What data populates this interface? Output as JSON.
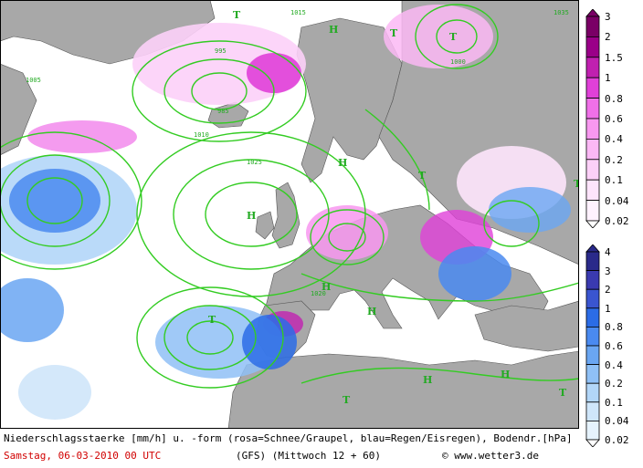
{
  "caption": {
    "line1": "Niederschlagsstaerke [mm/h] u. -form (rosa=Schnee/Graupel, blau=Regen/Eisregen), Bodendr.[hPa]",
    "date": "Samstag, 06-03-2010  00 UTC",
    "model": "(GFS)  (Mittwoch 12 + 60)",
    "copyright": "© www.wetter3.de"
  },
  "legend_snow": {
    "title": "Schnee/Graupel",
    "levels": [
      "3",
      "2",
      "1.5",
      "1",
      "0.8",
      "0.6",
      "0.4",
      "0.2",
      "0.1",
      "0.04",
      "0.02"
    ],
    "colors": [
      "#7a0066",
      "#9a0088",
      "#c020b0",
      "#e040d8",
      "#f070e8",
      "#f898f0",
      "#fbb8f5",
      "#fcd0f8",
      "#fde4fb",
      "#fff2fe",
      "#ffffff"
    ]
  },
  "legend_rain": {
    "title": "Regen/Eisregen",
    "levels": [
      "4",
      "3",
      "2",
      "1",
      "0.8",
      "0.6",
      "0.4",
      "0.2",
      "0.1",
      "0.04",
      "0.02"
    ],
    "colors": [
      "#2a2a8a",
      "#3a3ab0",
      "#3a55d0",
      "#2b6ce6",
      "#4a8af0",
      "#6aa6f2",
      "#8fc0f6",
      "#b2d6f8",
      "#cfe6fa",
      "#e6f3fd",
      "#ffffff"
    ]
  },
  "isobar_labels": [
    "1015",
    "1005",
    "995",
    "985",
    "1025",
    "1035",
    "1000",
    "1010",
    "1020"
  ],
  "pressure_centers": [
    "H",
    "T"
  ],
  "colors": {
    "ocean": "#ffffff",
    "land": "#a8a8a8",
    "isobar": "#33cc22",
    "snow_light": "#f6c6f2",
    "snow_heavy": "#c020b0",
    "rain_light": "#b2d6f8",
    "rain_heavy": "#2b6ce6",
    "caption_date": "#d10000"
  }
}
